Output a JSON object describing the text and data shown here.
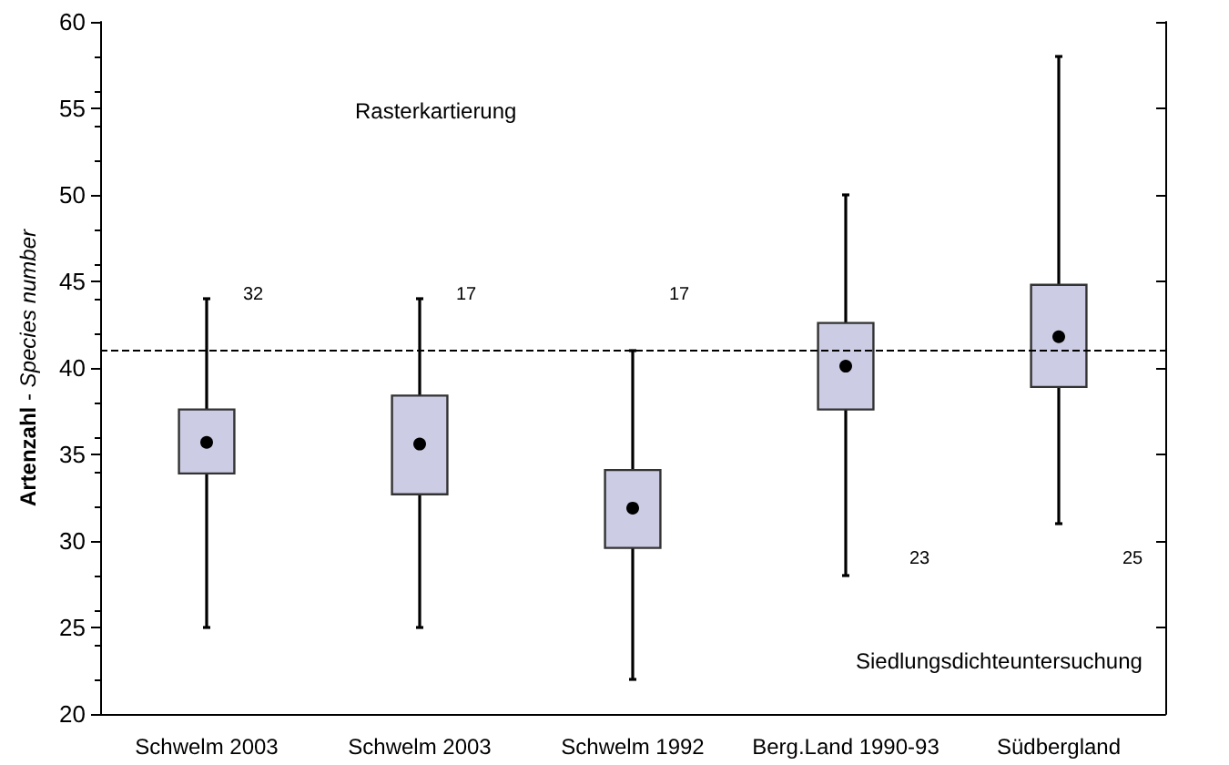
{
  "chart_data": {
    "type": "box",
    "ylabel": "Artenzahl - Species number",
    "categories": [
      "Schwelm 2003",
      "Schwelm 2003",
      "Schwelm 1992",
      "Berg.Land 1990-93",
      "Südbergland"
    ],
    "boxes": [
      {
        "low": 25,
        "q1": 33.9,
        "median": 35.7,
        "q3": 37.6,
        "high": 44
      },
      {
        "low": 25,
        "q1": 32.7,
        "median": 35.6,
        "q3": 38.4,
        "high": 44
      },
      {
        "low": 22,
        "q1": 29.6,
        "median": 31.9,
        "q3": 34.1,
        "high": 41
      },
      {
        "low": 28,
        "q1": 37.6,
        "median": 40.1,
        "q3": 42.6,
        "high": 50
      },
      {
        "low": 31,
        "q1": 38.9,
        "median": 41.8,
        "q3": 44.8,
        "high": 58
      }
    ],
    "color": "#ccccE4",
    "ylim": [
      20,
      60
    ],
    "yticks": [
      20,
      25,
      30,
      35,
      40,
      45,
      50,
      55,
      60
    ],
    "ref_lines": [
      {
        "axis": "y",
        "value": 41,
        "line_style": "dashed"
      }
    ],
    "annotations": [
      "32",
      "17",
      "17",
      "23",
      "25",
      "Rasterkartierung",
      "Siedlungsdichteuntersuchung"
    ],
    "grid": false
  }
}
